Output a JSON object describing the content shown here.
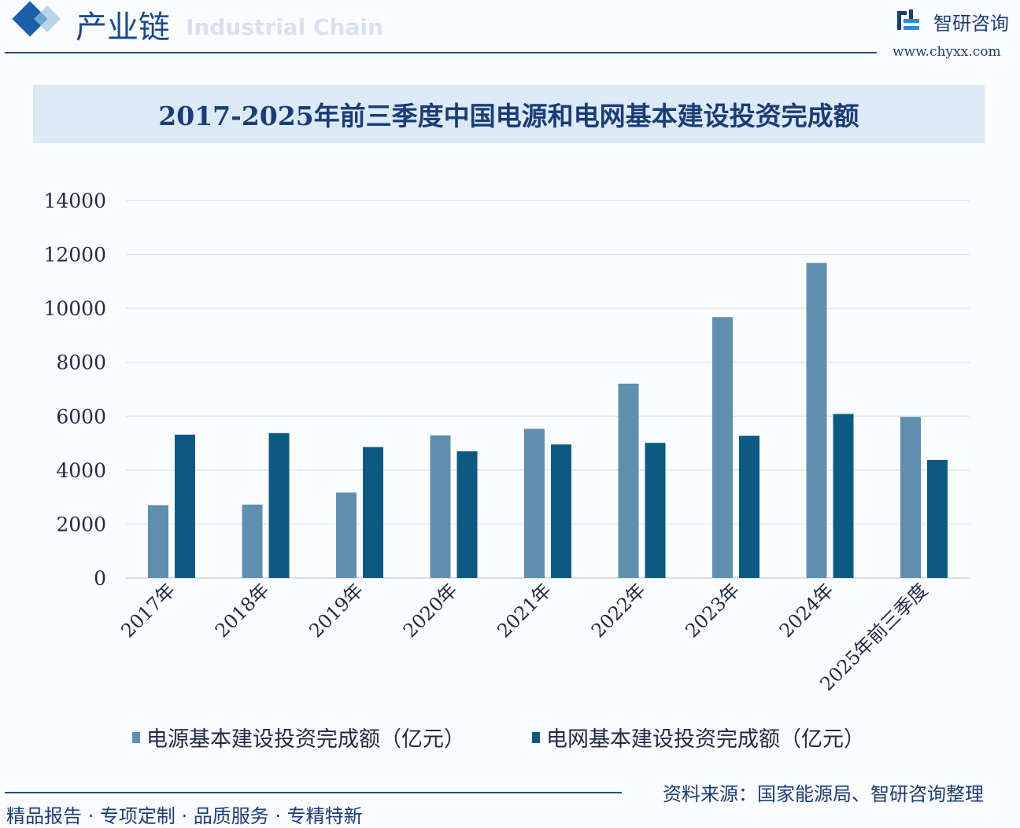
{
  "header": {
    "section_title": "产业链",
    "section_subtitle": "Industrial Chain",
    "brand_name": "智研咨询",
    "brand_url": "www.chyxx.com"
  },
  "footer": {
    "slogan": "精品报告 · 专项定制 · 品质服务 · 专精特新",
    "source": "资料来源：国家能源局、智研咨询整理"
  },
  "colors": {
    "series1": "#5f8fae",
    "series2": "#0c5a82",
    "title_bg": "#dce9f6",
    "title_text": "#1b3d77"
  },
  "chart_data": {
    "type": "bar",
    "title": "2017-2025年前三季度中国电源和电网基本建设投资完成额",
    "categories": [
      "2017年",
      "2018年",
      "2019年",
      "2020年",
      "2021年",
      "2022年",
      "2023年",
      "2024年",
      "2025年前三季度"
    ],
    "series": [
      {
        "name": "电源基本建设投资完成额（亿元）",
        "values": [
          2700,
          2721,
          3168,
          5291,
          5530,
          7208,
          9675,
          11687,
          5974
        ]
      },
      {
        "name": "电网基本建设投资完成额（亿元）",
        "values": [
          5315,
          5373,
          4856,
          4699,
          4951,
          5012,
          5275,
          6083,
          4378
        ]
      }
    ],
    "yticks": [
      0,
      2000,
      4000,
      6000,
      8000,
      10000,
      12000,
      14000
    ],
    "ylim": [
      0,
      14000
    ],
    "grid": true,
    "legend": "bottom"
  }
}
